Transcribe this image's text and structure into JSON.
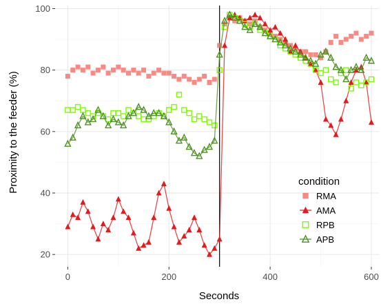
{
  "chart_data": {
    "type": "line",
    "title": "",
    "xlabel": "Seconds",
    "ylabel": "Proximity to the feeder (%)",
    "xlim": [
      -25,
      615
    ],
    "ylim": [
      16,
      101
    ],
    "x_ticks": [
      0,
      200,
      400,
      600
    ],
    "y_ticks": [
      20,
      40,
      60,
      80,
      100
    ],
    "grid": true,
    "legend_title": "condition",
    "legend_position": "bottom-right",
    "vertical_line_x": 300,
    "series": [
      {
        "name": "RMA",
        "color": "#f8766d",
        "marker": "square",
        "line": false,
        "x": [
          0,
          10,
          20,
          30,
          40,
          50,
          60,
          70,
          80,
          90,
          100,
          110,
          120,
          130,
          140,
          150,
          160,
          170,
          180,
          190,
          200,
          210,
          220,
          230,
          240,
          250,
          260,
          270,
          280,
          290,
          300,
          310,
          320,
          330,
          340,
          350,
          360,
          370,
          380,
          390,
          400,
          410,
          420,
          430,
          440,
          450,
          460,
          470,
          480,
          490,
          500,
          510,
          520,
          530,
          540,
          550,
          560,
          570,
          580,
          590,
          600
        ],
        "y": [
          78,
          80,
          81,
          80,
          81,
          79,
          80,
          81,
          79,
          80,
          81,
          80,
          79,
          80,
          79,
          80,
          78,
          79,
          80,
          79,
          79,
          78,
          77,
          78,
          77,
          76,
          77,
          78,
          76,
          77,
          88,
          95,
          97,
          96,
          97,
          96,
          95,
          96,
          94,
          93,
          92,
          91,
          90,
          89,
          88,
          87,
          86,
          86,
          85,
          85,
          84,
          86,
          89,
          91,
          89,
          90,
          91,
          92,
          90,
          91,
          92
        ]
      },
      {
        "name": "AMA",
        "color": "#e41a1c",
        "marker": "triangle",
        "line": true,
        "x": [
          0,
          10,
          20,
          30,
          40,
          50,
          60,
          70,
          80,
          90,
          100,
          110,
          120,
          130,
          140,
          150,
          160,
          170,
          180,
          190,
          200,
          210,
          220,
          230,
          240,
          250,
          260,
          270,
          280,
          290,
          300,
          310,
          320,
          330,
          340,
          350,
          360,
          370,
          380,
          390,
          400,
          410,
          420,
          430,
          440,
          450,
          460,
          470,
          480,
          490,
          500,
          510,
          520,
          530,
          540,
          550,
          560,
          570,
          580,
          590,
          600
        ],
        "y": [
          29,
          33,
          32,
          37,
          34,
          29,
          25,
          30,
          28,
          32,
          38,
          34,
          32,
          27,
          22,
          23,
          24,
          32,
          40,
          43,
          35,
          29,
          24,
          26,
          28,
          32,
          28,
          23,
          20,
          22,
          25,
          88,
          97,
          98,
          97,
          96,
          97,
          98,
          97,
          95,
          93,
          94,
          92,
          90,
          86,
          88,
          86,
          84,
          82,
          80,
          76,
          64,
          62,
          59,
          64,
          70,
          76,
          80,
          81,
          76,
          63
        ]
      },
      {
        "name": "RPB",
        "color": "#7cfc00",
        "marker": "open-square",
        "line": false,
        "x": [
          0,
          10,
          20,
          30,
          40,
          50,
          60,
          70,
          80,
          90,
          100,
          110,
          120,
          130,
          140,
          150,
          160,
          170,
          180,
          190,
          200,
          210,
          220,
          230,
          240,
          250,
          260,
          270,
          280,
          290,
          300,
          310,
          320,
          330,
          340,
          350,
          360,
          370,
          380,
          390,
          400,
          410,
          420,
          430,
          440,
          450,
          460,
          470,
          480,
          490,
          500,
          510,
          520,
          530,
          540,
          550,
          560,
          570,
          580,
          590,
          600
        ],
        "y": [
          67,
          67,
          68,
          67,
          66,
          65,
          66,
          65,
          64,
          66,
          66,
          65,
          67,
          66,
          65,
          64,
          64,
          65,
          66,
          65,
          67,
          68,
          72,
          67,
          66,
          64,
          65,
          64,
          63,
          62,
          80,
          94,
          98,
          97,
          96,
          95,
          94,
          95,
          93,
          92,
          91,
          90,
          88,
          87,
          86,
          85,
          84,
          83,
          82,
          80,
          79,
          80,
          77,
          76,
          79,
          80,
          74,
          76,
          75,
          76,
          77
        ]
      },
      {
        "name": "APB",
        "color": "#4d9221",
        "marker": "open-triangle",
        "line": true,
        "x": [
          0,
          10,
          20,
          30,
          40,
          50,
          60,
          70,
          80,
          90,
          100,
          110,
          120,
          130,
          140,
          150,
          160,
          170,
          180,
          190,
          200,
          210,
          220,
          230,
          240,
          250,
          260,
          270,
          280,
          290,
          300,
          310,
          320,
          330,
          340,
          350,
          360,
          370,
          380,
          390,
          400,
          410,
          420,
          430,
          440,
          450,
          460,
          470,
          480,
          490,
          500,
          510,
          520,
          530,
          540,
          550,
          560,
          570,
          580,
          590,
          600
        ],
        "y": [
          56,
          58,
          62,
          65,
          63,
          64,
          67,
          65,
          62,
          64,
          63,
          62,
          65,
          66,
          68,
          67,
          65,
          66,
          66,
          65,
          63,
          60,
          57,
          58,
          55,
          53,
          52,
          54,
          55,
          57,
          85,
          96,
          98,
          97,
          96,
          94,
          93,
          95,
          94,
          92,
          91,
          90,
          89,
          88,
          87,
          86,
          85,
          84,
          83,
          82,
          85,
          86,
          84,
          81,
          80,
          77,
          80,
          81,
          80,
          84,
          83
        ]
      }
    ]
  }
}
